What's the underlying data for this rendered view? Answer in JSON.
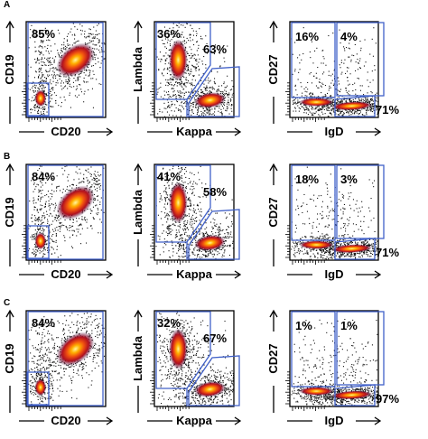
{
  "figure": {
    "rows": [
      {
        "letter": "A",
        "panels": [
          {
            "xlabel": "CD20",
            "ylabel": "CD19",
            "gates": [
              {
                "label": "85%"
              }
            ]
          },
          {
            "xlabel": "Kappa",
            "ylabel": "Lambda",
            "gates": [
              {
                "label": "36%"
              },
              {
                "label": "63%"
              }
            ]
          },
          {
            "xlabel": "IgD",
            "ylabel": "CD27",
            "gates": [
              {
                "label": "16%"
              },
              {
                "label": "4%"
              },
              {
                "label": "71%"
              }
            ]
          }
        ]
      },
      {
        "letter": "B",
        "panels": [
          {
            "xlabel": "CD20",
            "ylabel": "CD19",
            "gates": [
              {
                "label": "84%"
              }
            ]
          },
          {
            "xlabel": "Kappa",
            "ylabel": "Lambda",
            "gates": [
              {
                "label": "41%"
              },
              {
                "label": "58%"
              }
            ]
          },
          {
            "xlabel": "IgD",
            "ylabel": "CD27",
            "gates": [
              {
                "label": "18%"
              },
              {
                "label": "3%"
              },
              {
                "label": "71%"
              }
            ]
          }
        ]
      },
      {
        "letter": "C",
        "panels": [
          {
            "xlabel": "CD20",
            "ylabel": "CD19",
            "gates": [
              {
                "label": "84%"
              }
            ]
          },
          {
            "xlabel": "Kappa",
            "ylabel": "Lambda",
            "gates": [
              {
                "label": "32%"
              },
              {
                "label": "67%"
              }
            ]
          },
          {
            "xlabel": "IgD",
            "ylabel": "CD27",
            "gates": [
              {
                "label": "1%"
              },
              {
                "label": "1%"
              },
              {
                "label": "97%"
              }
            ]
          }
        ]
      }
    ]
  },
  "chart_data": [
    {
      "type": "scatter",
      "panel": "A-1",
      "xlabel": "CD20",
      "ylabel": "CD19",
      "gate_percentages": [
        85
      ]
    },
    {
      "type": "scatter",
      "panel": "A-2",
      "xlabel": "Kappa",
      "ylabel": "Lambda",
      "gate_percentages": [
        36,
        63
      ]
    },
    {
      "type": "scatter",
      "panel": "A-3",
      "xlabel": "IgD",
      "ylabel": "CD27",
      "gate_percentages": [
        16,
        4,
        71
      ]
    },
    {
      "type": "scatter",
      "panel": "B-1",
      "xlabel": "CD20",
      "ylabel": "CD19",
      "gate_percentages": [
        84
      ]
    },
    {
      "type": "scatter",
      "panel": "B-2",
      "xlabel": "Kappa",
      "ylabel": "Lambda",
      "gate_percentages": [
        41,
        58
      ]
    },
    {
      "type": "scatter",
      "panel": "B-3",
      "xlabel": "IgD",
      "ylabel": "CD27",
      "gate_percentages": [
        18,
        3,
        71
      ]
    },
    {
      "type": "scatter",
      "panel": "C-1",
      "xlabel": "CD20",
      "ylabel": "CD19",
      "gate_percentages": [
        84
      ]
    },
    {
      "type": "scatter",
      "panel": "C-2",
      "xlabel": "Kappa",
      "ylabel": "Lambda",
      "gate_percentages": [
        32,
        67
      ]
    },
    {
      "type": "scatter",
      "panel": "C-3",
      "xlabel": "IgD",
      "ylabel": "CD27",
      "gate_percentages": [
        1,
        1,
        97
      ]
    }
  ]
}
